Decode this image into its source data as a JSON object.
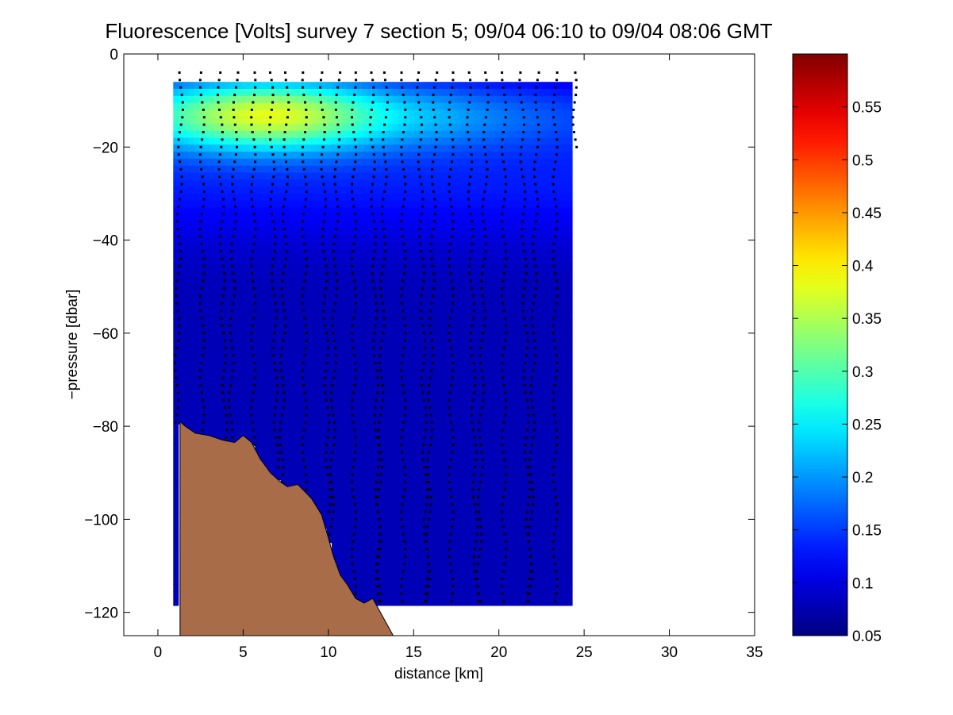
{
  "chart_data": {
    "type": "heatmap",
    "title": "Fluorescence [Volts] survey 7 section 5; 09/04 06:10 to 09/04 08:06 GMT",
    "xlabel": "distance [km]",
    "ylabel": "−pressure [dbar]",
    "xlim": [
      -2,
      35
    ],
    "ylim": [
      -125,
      0
    ],
    "x_ticks": [
      0,
      5,
      10,
      15,
      20,
      25,
      30,
      35
    ],
    "x_tick_labels": [
      "0",
      "5",
      "10",
      "15",
      "20",
      "25",
      "30",
      "35"
    ],
    "y_ticks": [
      0,
      -20,
      -40,
      -60,
      -80,
      -100,
      -120
    ],
    "y_tick_labels": [
      "0",
      "−20",
      "−40",
      "−60",
      "−80",
      "−100",
      "−120"
    ],
    "colorbar": {
      "clim": [
        0.05,
        0.6
      ],
      "colormap": "jet",
      "ticks": [
        0.05,
        0.1,
        0.15,
        0.2,
        0.25,
        0.3,
        0.35,
        0.4,
        0.45,
        0.5,
        0.55
      ],
      "tick_labels": [
        "0.05",
        "0.1",
        "0.15",
        "0.2",
        "0.25",
        "0.3",
        "0.35",
        "0.4",
        "0.45",
        "0.5",
        "0.55"
      ]
    },
    "field": {
      "x_range": [
        0.9,
        24.3
      ],
      "top_pressure": -6,
      "surface_peak": {
        "x": 6.5,
        "depth": -13,
        "value": 0.37
      },
      "background_value": 0.08
    },
    "profile_x": [
      1.4,
      2.6,
      3.6,
      4.6,
      5.6,
      6.6,
      7.6,
      8.6,
      9.6,
      10.6,
      11.5,
      12.5,
      13.4,
      14.4,
      15.3,
      16.3,
      17.2,
      18.2,
      19.3,
      20.3,
      21.3,
      22.3,
      23.3,
      24.4
    ],
    "profile_bottom": [
      -80,
      -82,
      -83,
      -84,
      -86,
      -90,
      -93,
      -95,
      -99,
      -110,
      -116,
      -118,
      -118,
      -118,
      -118,
      -118,
      -118,
      -118,
      -118,
      -118,
      -118,
      -118,
      -118,
      -20
    ],
    "bathymetry": {
      "x": [
        1.3,
        1.6,
        2.2,
        3.0,
        3.8,
        4.5,
        5.0,
        5.5,
        6.0,
        6.6,
        7.2,
        7.6,
        8.2,
        9.0,
        9.6,
        10.0,
        10.3,
        10.7,
        11.1,
        11.6,
        12.1,
        12.6,
        13.2,
        13.8
      ],
      "y": [
        -79,
        -80,
        -81.5,
        -82,
        -83,
        -83.5,
        -82,
        -83.5,
        -87,
        -90,
        -92,
        -93,
        -92.5,
        -95.5,
        -99,
        -104,
        -108,
        -112,
        -114,
        -117,
        -118,
        -117,
        -121,
        -125
      ]
    }
  }
}
